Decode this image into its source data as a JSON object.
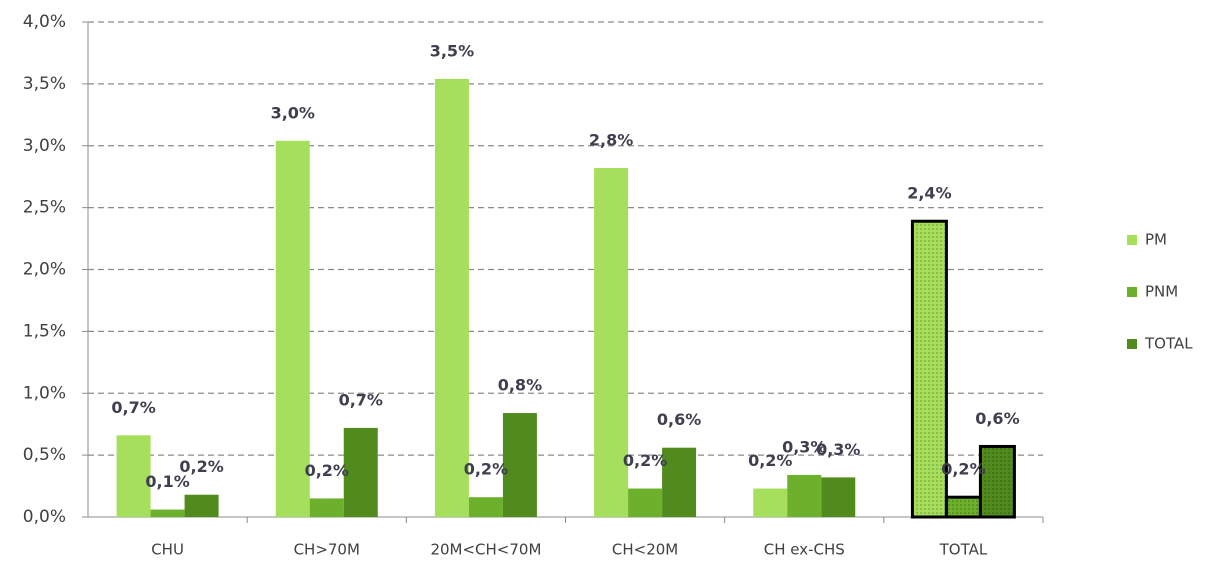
{
  "chart_data": {
    "type": "bar",
    "categories": [
      "CHU",
      "CH>70M",
      "20M<CH<70M",
      "CH<20M",
      "CH ex-CHS",
      "TOTAL"
    ],
    "series": [
      {
        "name": "PM",
        "color": "#a5df5b",
        "values": [
          0.66,
          3.04,
          3.54,
          2.82,
          0.23,
          2.39
        ],
        "value_labels": [
          "0,7%",
          "3,0%",
          "3,5%",
          "2,8%",
          "0,2%",
          "2,4%"
        ]
      },
      {
        "name": "PNM",
        "color": "#6cb02c",
        "values": [
          0.06,
          0.15,
          0.16,
          0.23,
          0.34,
          0.16
        ],
        "value_labels": [
          "0,1%",
          "0,2%",
          "0,2%",
          "0,2%",
          "0,3%",
          "0,2%"
        ]
      },
      {
        "name": "TOTAL",
        "color": "#518b1e",
        "values": [
          0.18,
          0.72,
          0.84,
          0.56,
          0.32,
          0.57
        ],
        "value_labels": [
          "0,2%",
          "0,7%",
          "0,8%",
          "0,6%",
          "0,3%",
          "0,6%"
        ]
      }
    ],
    "ylim": [
      0,
      4
    ],
    "yticks": [
      {
        "value": 0,
        "label": "0,0%"
      },
      {
        "value": 0.5,
        "label": "0,5%"
      },
      {
        "value": 1,
        "label": "1,0%"
      },
      {
        "value": 1.5,
        "label": "1,5%"
      },
      {
        "value": 2,
        "label": "2,0%"
      },
      {
        "value": 2.5,
        "label": "2,5%"
      },
      {
        "value": 3,
        "label": "3,0%"
      },
      {
        "value": 3.5,
        "label": "3,5%"
      },
      {
        "value": 4,
        "label": "4,0%"
      }
    ],
    "grid": true,
    "legend": "right"
  }
}
